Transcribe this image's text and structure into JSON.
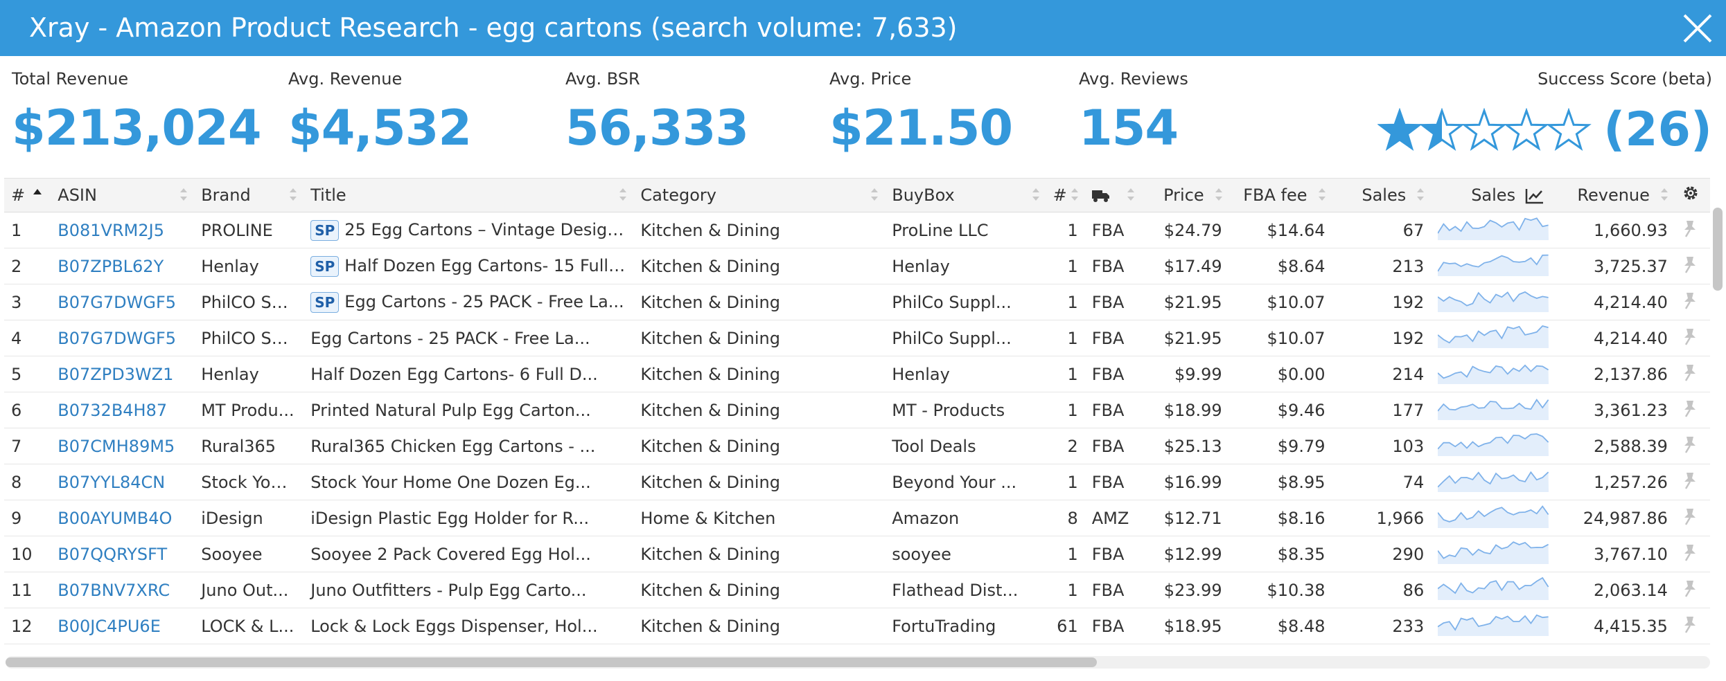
{
  "header": {
    "title": "Xray - Amazon Product Research - egg cartons (search volume: 7,633)"
  },
  "stats": [
    {
      "label": "Total Revenue",
      "value": "$213,024"
    },
    {
      "label": "Avg. Revenue",
      "value": "$4,532"
    },
    {
      "label": "Avg. BSR",
      "value": "56,333"
    },
    {
      "label": "Avg. Price",
      "value": "$21.50"
    },
    {
      "label": "Avg. Reviews",
      "value": "154"
    }
  ],
  "success_score": {
    "label": "Success Score (beta)",
    "rating": 1.5,
    "max": 5,
    "count": "(26)"
  },
  "table": {
    "columns": {
      "num": "#",
      "asin": "ASIN",
      "brand": "Brand",
      "title": "Title",
      "category": "Category",
      "buybox": "BuyBox",
      "sellers": "#",
      "price": "Price",
      "fba_fee": "FBA fee",
      "sales": "Sales",
      "sales_trend": "Sales",
      "revenue": "Revenue"
    },
    "rows": [
      {
        "num": "1",
        "asin": "B081VRM2J5",
        "brand": "PROLINE",
        "sp": "SP",
        "title": "25 Egg Cartons – Vintage Design...",
        "category": "Kitchen & Dining",
        "buybox": "ProLine LLC",
        "sellers": "1",
        "fulfill": "FBA",
        "price": "$24.79",
        "fba_fee": "$14.64",
        "sales": "67",
        "revenue": "1,660.93"
      },
      {
        "num": "2",
        "asin": "B07ZPBL62Y",
        "brand": "Henlay",
        "sp": "SP",
        "title": "Half Dozen Egg Cartons- 15 Full ...",
        "category": "Kitchen & Dining",
        "buybox": "Henlay",
        "sellers": "1",
        "fulfill": "FBA",
        "price": "$17.49",
        "fba_fee": "$8.64",
        "sales": "213",
        "revenue": "3,725.37"
      },
      {
        "num": "3",
        "asin": "B07G7DWGF5",
        "brand": "PhilCO Su...",
        "sp": "SP",
        "title": "Egg Cartons - 25 PACK - Free La...",
        "category": "Kitchen & Dining",
        "buybox": "PhilCo Suppl...",
        "sellers": "1",
        "fulfill": "FBA",
        "price": "$21.95",
        "fba_fee": "$10.07",
        "sales": "192",
        "revenue": "4,214.40"
      },
      {
        "num": "4",
        "asin": "B07G7DWGF5",
        "brand": "PhilCO Su...",
        "sp": "",
        "title": "Egg Cartons - 25 PACK - Free La...",
        "category": "Kitchen & Dining",
        "buybox": "PhilCo Suppl...",
        "sellers": "1",
        "fulfill": "FBA",
        "price": "$21.95",
        "fba_fee": "$10.07",
        "sales": "192",
        "revenue": "4,214.40"
      },
      {
        "num": "5",
        "asin": "B07ZPD3WZ1",
        "brand": "Henlay",
        "sp": "",
        "title": "Half Dozen Egg Cartons- 6 Full D...",
        "category": "Kitchen & Dining",
        "buybox": "Henlay",
        "sellers": "1",
        "fulfill": "FBA",
        "price": "$9.99",
        "fba_fee": "$0.00",
        "sales": "214",
        "revenue": "2,137.86"
      },
      {
        "num": "6",
        "asin": "B0732B4H87",
        "brand": "MT Produ...",
        "sp": "",
        "title": "Printed Natural Pulp Egg Carton...",
        "category": "Kitchen & Dining",
        "buybox": "MT - Products",
        "sellers": "1",
        "fulfill": "FBA",
        "price": "$18.99",
        "fba_fee": "$9.46",
        "sales": "177",
        "revenue": "3,361.23"
      },
      {
        "num": "7",
        "asin": "B07CMH89M5",
        "brand": "Rural365",
        "sp": "",
        "title": "Rural365 Chicken Egg Cartons - ...",
        "category": "Kitchen & Dining",
        "buybox": "Tool Deals",
        "sellers": "2",
        "fulfill": "FBA",
        "price": "$25.13",
        "fba_fee": "$9.79",
        "sales": "103",
        "revenue": "2,588.39"
      },
      {
        "num": "8",
        "asin": "B07YYL84CN",
        "brand": "Stock You...",
        "sp": "",
        "title": "Stock Your Home One Dozen Eg...",
        "category": "Kitchen & Dining",
        "buybox": "Beyond Your ...",
        "sellers": "1",
        "fulfill": "FBA",
        "price": "$16.99",
        "fba_fee": "$8.95",
        "sales": "74",
        "revenue": "1,257.26"
      },
      {
        "num": "9",
        "asin": "B00AYUMB4O",
        "brand": "iDesign",
        "sp": "",
        "title": "iDesign Plastic Egg Holder for R...",
        "category": "Home & Kitchen",
        "buybox": "Amazon",
        "sellers": "8",
        "fulfill": "AMZ",
        "price": "$12.71",
        "fba_fee": "$8.16",
        "sales": "1,966",
        "revenue": "24,987.86"
      },
      {
        "num": "10",
        "asin": "B07QQRYSFT",
        "brand": "Sooyee",
        "sp": "",
        "title": "Sooyee 2 Pack Covered Egg Hol...",
        "category": "Kitchen & Dining",
        "buybox": "sooyee",
        "sellers": "1",
        "fulfill": "FBA",
        "price": "$12.99",
        "fba_fee": "$8.35",
        "sales": "290",
        "revenue": "3,767.10"
      },
      {
        "num": "11",
        "asin": "B07BNV7XRC",
        "brand": "Juno Out...",
        "sp": "",
        "title": "Juno Outfitters - Pulp Egg Carto...",
        "category": "Kitchen & Dining",
        "buybox": "Flathead Dist...",
        "sellers": "1",
        "fulfill": "FBA",
        "price": "$23.99",
        "fba_fee": "$10.38",
        "sales": "86",
        "revenue": "2,063.14"
      },
      {
        "num": "12",
        "asin": "B00JC4PU6E",
        "brand": "LOCK & L...",
        "sp": "",
        "title": "Lock & Lock Eggs Dispenser, Hol...",
        "category": "Kitchen & Dining",
        "buybox": "FortuTrading",
        "sellers": "61",
        "fulfill": "FBA",
        "price": "$18.95",
        "fba_fee": "$8.48",
        "sales": "233",
        "revenue": "4,415.35"
      }
    ]
  },
  "colors": {
    "header_bg": "#3498db",
    "accent": "#3498db",
    "link": "#2f7fc1",
    "sparkline": "#7fb2ea"
  },
  "icons": {
    "close": "close-icon",
    "truck": "truck-icon",
    "trend": "chart-line-icon",
    "settings": "gear-icon",
    "pin": "pin-icon",
    "star": "star-icon"
  }
}
